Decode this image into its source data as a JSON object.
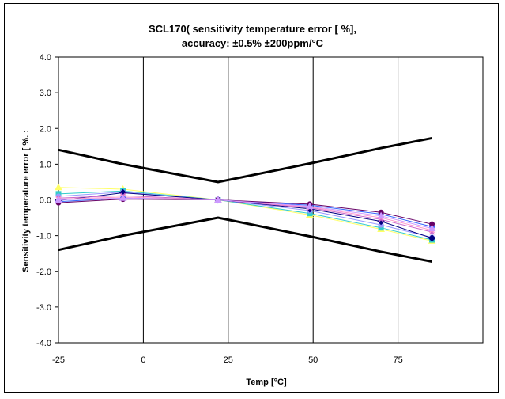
{
  "chart_data": {
    "type": "line",
    "title": "SCL170( sensitivity temperature error [ %],",
    "subtitle": "accuracy: ±0.5% ±200ppm/°C",
    "xlabel": "Temp [°C]",
    "ylabel": "Sensitivity temperature error [ %. :",
    "xlim": [
      -25,
      100
    ],
    "ylim": [
      -4.0,
      4.0
    ],
    "x_ticks": [
      "-25",
      "0",
      "25",
      "50",
      "75"
    ],
    "y_ticks": [
      "4.0",
      "3.0",
      "2.0",
      "1.0",
      "0.0",
      "-1.0",
      "-2.0",
      "-3.0",
      "-4.0"
    ],
    "grid": "vertical",
    "x": [
      -25,
      -6,
      22,
      49,
      70,
      85
    ],
    "series": [
      {
        "color": "#000000",
        "width": 3,
        "marker": "none",
        "values": [
          1.4,
          1.0,
          0.5,
          1.02,
          1.45,
          1.73
        ]
      },
      {
        "color": "#000000",
        "width": 3,
        "marker": "none",
        "values": [
          -1.4,
          -1.0,
          -0.5,
          -1.02,
          -1.45,
          -1.73
        ]
      },
      {
        "color": "#ffff66",
        "width": 1,
        "marker": "triangle",
        "values": [
          0.35,
          0.3,
          0.0,
          -0.42,
          -0.82,
          -1.15
        ]
      },
      {
        "color": "#33cccc",
        "width": 1,
        "marker": "square",
        "values": [
          0.17,
          0.25,
          0.0,
          -0.38,
          -0.78,
          -1.12
        ]
      },
      {
        "color": "#9999ff",
        "width": 1,
        "marker": "circle",
        "values": [
          0.1,
          0.22,
          0.0,
          -0.3,
          -0.7,
          -1.05
        ]
      },
      {
        "color": "#000080",
        "width": 1,
        "marker": "diamond",
        "values": [
          -0.02,
          0.2,
          0.0,
          -0.25,
          -0.6,
          -1.07
        ]
      },
      {
        "color": "#cc66cc",
        "width": 1,
        "marker": "x",
        "values": [
          0.05,
          0.12,
          0.0,
          -0.22,
          -0.55,
          -0.9
        ]
      },
      {
        "color": "#ff99cc",
        "width": 1,
        "marker": "x",
        "values": [
          0.02,
          0.08,
          0.0,
          -0.2,
          -0.5,
          -0.85
        ]
      },
      {
        "color": "#3366ff",
        "width": 1,
        "marker": "circle",
        "values": [
          -0.05,
          0.05,
          0.0,
          -0.15,
          -0.4,
          -0.75
        ]
      },
      {
        "color": "#660066",
        "width": 1,
        "marker": "circle",
        "values": [
          -0.08,
          0.02,
          0.0,
          -0.12,
          -0.35,
          -0.68
        ]
      },
      {
        "color": "#cc99ff",
        "width": 1,
        "marker": "triangle",
        "values": [
          0.0,
          0.05,
          0.0,
          -0.18,
          -0.45,
          -0.8
        ]
      }
    ]
  }
}
